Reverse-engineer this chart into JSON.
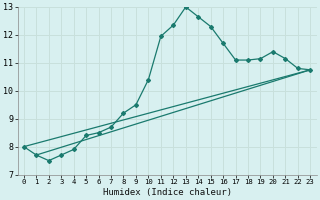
{
  "xlabel": "Humidex (Indice chaleur)",
  "bg_color": "#d8f0f0",
  "line_color": "#1a7a6e",
  "grid_color": "#c8e0dc",
  "xlim": [
    -0.5,
    23.5
  ],
  "ylim": [
    7,
    13
  ],
  "yticks": [
    7,
    8,
    9,
    10,
    11,
    12,
    13
  ],
  "xticks": [
    0,
    1,
    2,
    3,
    4,
    5,
    6,
    7,
    8,
    9,
    10,
    11,
    12,
    13,
    14,
    15,
    16,
    17,
    18,
    19,
    20,
    21,
    22,
    23
  ],
  "curve1_x": [
    0,
    1,
    2,
    3,
    4,
    5,
    6,
    7,
    8,
    9,
    10,
    11,
    12,
    13,
    14,
    15,
    16,
    17,
    18,
    19,
    20,
    21,
    22,
    23
  ],
  "curve1_y": [
    8.0,
    7.7,
    7.5,
    7.7,
    7.9,
    8.4,
    8.5,
    8.7,
    9.2,
    9.5,
    10.4,
    11.95,
    12.35,
    13.0,
    12.65,
    12.3,
    11.7,
    11.1,
    11.1,
    11.15,
    11.4,
    11.15,
    10.8,
    10.75
  ],
  "curve2_x": [
    0,
    23
  ],
  "curve2_y": [
    8.0,
    10.75
  ],
  "curve3_x": [
    1,
    23
  ],
  "curve3_y": [
    7.7,
    10.75
  ]
}
